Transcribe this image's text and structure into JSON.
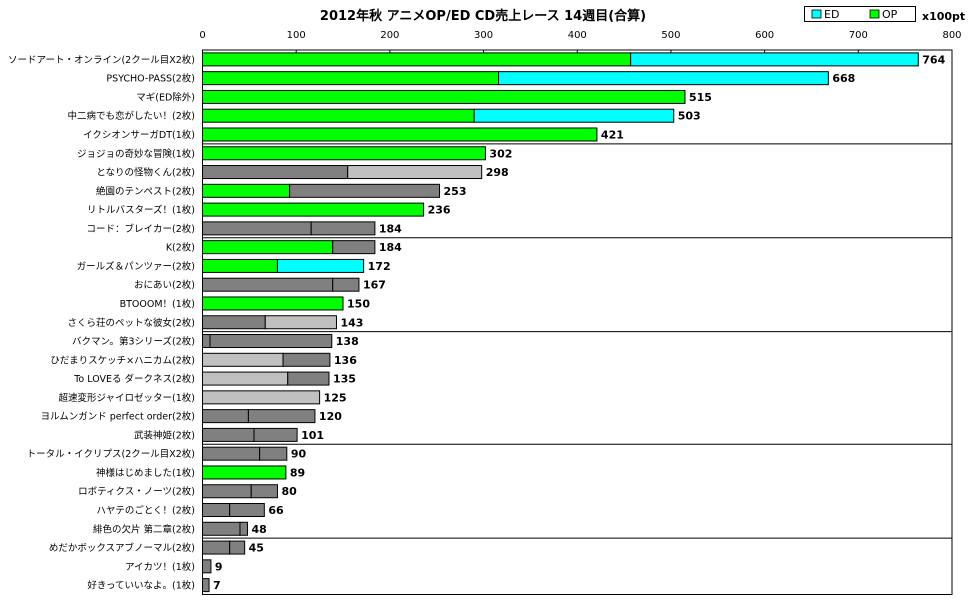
{
  "chart_data": {
    "type": "bar",
    "orientation": "horizontal",
    "stacked": true,
    "title": "2012年秋 アニメOP/ED CD売上レース 14週目(合算)",
    "unit": "x100pt",
    "xlim": [
      0,
      800
    ],
    "xticks": [
      0,
      100,
      200,
      300,
      400,
      500,
      600,
      700,
      800
    ],
    "grid": false,
    "legend_position": "top-right",
    "legend": [
      {
        "name": "ED",
        "color": "#00ffff"
      },
      {
        "name": "OP",
        "color": "#00ff00"
      }
    ],
    "colors": {
      "OP": "#00ff00",
      "ED": "#00ffff",
      "other_dark": "#808080",
      "other_light": "#c0c0c0"
    },
    "group_separators_after": [
      4,
      9,
      14,
      20,
      25
    ],
    "rows": [
      {
        "label": "ソードアート・オンライン(2クール目X2枚)",
        "total": 764,
        "segments": [
          {
            "value": 457,
            "kind": "OP"
          },
          {
            "value": 307,
            "kind": "ED"
          }
        ]
      },
      {
        "label": "PSYCHO-PASS(2枚)",
        "total": 668,
        "segments": [
          {
            "value": 316,
            "kind": "OP"
          },
          {
            "value": 352,
            "kind": "ED"
          }
        ]
      },
      {
        "label": "マギ(ED除外)",
        "total": 515,
        "segments": [
          {
            "value": 515,
            "kind": "OP"
          }
        ]
      },
      {
        "label": "中二病でも恋がしたい！(2枚)",
        "total": 503,
        "segments": [
          {
            "value": 290,
            "kind": "OP"
          },
          {
            "value": 213,
            "kind": "ED"
          }
        ]
      },
      {
        "label": "イクシオンサーガDT(1枚)",
        "total": 421,
        "segments": [
          {
            "value": 421,
            "kind": "OP"
          }
        ]
      },
      {
        "label": "ジョジョの奇妙な冒険(1枚)",
        "total": 302,
        "segments": [
          {
            "value": 302,
            "kind": "OP"
          }
        ]
      },
      {
        "label": "となりの怪物くん(2枚)",
        "total": 298,
        "segments": [
          {
            "value": 155,
            "kind": "other_dark"
          },
          {
            "value": 143,
            "kind": "other_light"
          }
        ]
      },
      {
        "label": "絶園のテンペスト(2枚)",
        "total": 253,
        "segments": [
          {
            "value": 93,
            "kind": "OP"
          },
          {
            "value": 160,
            "kind": "other_dark"
          }
        ]
      },
      {
        "label": "リトルバスターズ！(1枚)",
        "total": 236,
        "segments": [
          {
            "value": 236,
            "kind": "OP"
          }
        ]
      },
      {
        "label": "コード：ブレイカー(2枚)",
        "total": 184,
        "segments": [
          {
            "value": 116,
            "kind": "other_dark"
          },
          {
            "value": 68,
            "kind": "other_dark"
          }
        ]
      },
      {
        "label": "K(2枚)",
        "total": 184,
        "segments": [
          {
            "value": 139,
            "kind": "OP"
          },
          {
            "value": 45,
            "kind": "other_dark"
          }
        ]
      },
      {
        "label": "ガールズ＆パンツァー(2枚)",
        "total": 172,
        "segments": [
          {
            "value": 80,
            "kind": "OP"
          },
          {
            "value": 92,
            "kind": "ED"
          }
        ]
      },
      {
        "label": "おにあい(2枚)",
        "total": 167,
        "segments": [
          {
            "value": 139,
            "kind": "other_dark"
          },
          {
            "value": 28,
            "kind": "other_dark"
          }
        ]
      },
      {
        "label": "BTOOOM！(1枚)",
        "total": 150,
        "segments": [
          {
            "value": 150,
            "kind": "OP"
          }
        ]
      },
      {
        "label": "さくら荘のペットな彼女(2枚)",
        "total": 143,
        "segments": [
          {
            "value": 67,
            "kind": "other_dark"
          },
          {
            "value": 76,
            "kind": "other_light"
          }
        ]
      },
      {
        "label": "バクマン。第3シリーズ(2枚)",
        "total": 138,
        "segments": [
          {
            "value": 8,
            "kind": "other_dark"
          },
          {
            "value": 130,
            "kind": "other_dark"
          }
        ]
      },
      {
        "label": "ひだまりスケッチ×ハニカム(2枚)",
        "total": 136,
        "segments": [
          {
            "value": 86,
            "kind": "other_light"
          },
          {
            "value": 50,
            "kind": "other_dark"
          }
        ]
      },
      {
        "label": "To LOVEる ダークネス(2枚)",
        "total": 135,
        "segments": [
          {
            "value": 91,
            "kind": "other_light"
          },
          {
            "value": 44,
            "kind": "other_dark"
          }
        ]
      },
      {
        "label": "超速変形ジャイロゼッター(1枚)",
        "total": 125,
        "segments": [
          {
            "value": 125,
            "kind": "other_light"
          }
        ]
      },
      {
        "label": "ヨルムンガンド perfect order(2枚)",
        "total": 120,
        "segments": [
          {
            "value": 49,
            "kind": "other_dark"
          },
          {
            "value": 71,
            "kind": "other_dark"
          }
        ]
      },
      {
        "label": "武装神姫(2枚)",
        "total": 101,
        "segments": [
          {
            "value": 55,
            "kind": "other_dark"
          },
          {
            "value": 46,
            "kind": "other_dark"
          }
        ]
      },
      {
        "label": "トータル・イクリプス(2クール目X2枚)",
        "total": 90,
        "segments": [
          {
            "value": 61,
            "kind": "other_dark"
          },
          {
            "value": 29,
            "kind": "other_dark"
          }
        ]
      },
      {
        "label": "神様はじめました(1枚)",
        "total": 89,
        "segments": [
          {
            "value": 89,
            "kind": "OP"
          }
        ]
      },
      {
        "label": "ロボティクス・ノーツ(2枚)",
        "total": 80,
        "segments": [
          {
            "value": 52,
            "kind": "other_dark"
          },
          {
            "value": 28,
            "kind": "other_dark"
          }
        ]
      },
      {
        "label": "ハヤテのごとく！(2枚)",
        "total": 66,
        "segments": [
          {
            "value": 29,
            "kind": "other_dark"
          },
          {
            "value": 37,
            "kind": "other_dark"
          }
        ]
      },
      {
        "label": "緋色の欠片 第二章(2枚)",
        "total": 48,
        "segments": [
          {
            "value": 40,
            "kind": "other_dark"
          },
          {
            "value": 8,
            "kind": "other_dark"
          }
        ]
      },
      {
        "label": "めだかボックスアブノーマル(2枚)",
        "total": 45,
        "segments": [
          {
            "value": 29,
            "kind": "other_dark"
          },
          {
            "value": 16,
            "kind": "other_dark"
          }
        ]
      },
      {
        "label": "アイカツ！(1枚)",
        "total": 9,
        "segments": [
          {
            "value": 9,
            "kind": "other_dark"
          }
        ]
      },
      {
        "label": "好きっていいなよ。(1枚)",
        "total": 7,
        "segments": [
          {
            "value": 7,
            "kind": "other_dark"
          }
        ]
      }
    ]
  }
}
